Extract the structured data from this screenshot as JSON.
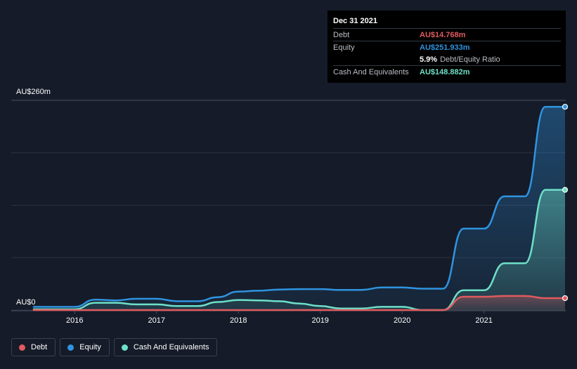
{
  "tooltip": {
    "date": "Dec 31 2021",
    "debt_label": "Debt",
    "debt_value": "AU$14.768m",
    "equity_label": "Equity",
    "equity_value": "AU$251.933m",
    "ratio_value": "5.9%",
    "ratio_label": "Debt/Equity Ratio",
    "cash_label": "Cash And Equivalents",
    "cash_value": "AU$148.882m"
  },
  "legend": {
    "debt_label": "Debt",
    "equity_label": "Equity",
    "cash_label": "Cash And Equivalents"
  },
  "colors": {
    "debt": "#e05a5f",
    "equity": "#2f94e0",
    "cash": "#6ee0c8",
    "background": "#151b28",
    "tooltip_bg": "#000000"
  },
  "chart_data": {
    "type": "area",
    "ylabel_top": "AU$260m",
    "ylabel_bottom": "AU$0",
    "ylim": [
      0,
      260
    ],
    "x_ticks": [
      "2016",
      "2017",
      "2018",
      "2019",
      "2020",
      "2021"
    ],
    "xlim": [
      2015.5,
      2021.99
    ],
    "grid": true,
    "series": [
      {
        "name": "Debt",
        "key": "debt",
        "points": [
          [
            2015.5,
            0
          ],
          [
            2016.0,
            0
          ],
          [
            2016.5,
            0
          ],
          [
            2017.0,
            0
          ],
          [
            2017.5,
            0
          ],
          [
            2018.0,
            0
          ],
          [
            2018.5,
            0
          ],
          [
            2019.0,
            0
          ],
          [
            2019.5,
            0
          ],
          [
            2020.0,
            0
          ],
          [
            2020.5,
            0
          ],
          [
            2020.75,
            16.5
          ],
          [
            2021.0,
            16.5
          ],
          [
            2021.25,
            17.5
          ],
          [
            2021.5,
            17.5
          ],
          [
            2021.75,
            14.8
          ],
          [
            2021.99,
            14.8
          ]
        ]
      },
      {
        "name": "Equity",
        "key": "equity",
        "points": [
          [
            2015.5,
            4
          ],
          [
            2016.0,
            4
          ],
          [
            2016.25,
            13
          ],
          [
            2016.5,
            12
          ],
          [
            2016.75,
            14
          ],
          [
            2017.0,
            14
          ],
          [
            2017.25,
            11
          ],
          [
            2017.5,
            11
          ],
          [
            2017.75,
            16
          ],
          [
            2018.0,
            23
          ],
          [
            2018.25,
            24
          ],
          [
            2018.5,
            25.5
          ],
          [
            2018.75,
            26
          ],
          [
            2019.0,
            26
          ],
          [
            2019.25,
            25
          ],
          [
            2019.5,
            25
          ],
          [
            2019.75,
            28
          ],
          [
            2020.0,
            28
          ],
          [
            2020.25,
            26.5
          ],
          [
            2020.5,
            26.5
          ],
          [
            2020.75,
            101
          ],
          [
            2021.0,
            101
          ],
          [
            2021.25,
            141
          ],
          [
            2021.5,
            141
          ],
          [
            2021.75,
            252
          ],
          [
            2021.99,
            252
          ]
        ]
      },
      {
        "name": "Cash And Equivalents",
        "key": "cash",
        "points": [
          [
            2015.5,
            1
          ],
          [
            2016.0,
            1
          ],
          [
            2016.25,
            9
          ],
          [
            2016.5,
            9
          ],
          [
            2016.75,
            7
          ],
          [
            2017.0,
            7
          ],
          [
            2017.25,
            5
          ],
          [
            2017.5,
            5
          ],
          [
            2017.75,
            10
          ],
          [
            2018.0,
            12.5
          ],
          [
            2018.25,
            12
          ],
          [
            2018.5,
            11
          ],
          [
            2018.75,
            8
          ],
          [
            2019.0,
            5
          ],
          [
            2019.25,
            2
          ],
          [
            2019.5,
            2
          ],
          [
            2019.75,
            4
          ],
          [
            2020.0,
            4
          ],
          [
            2020.25,
            0
          ],
          [
            2020.5,
            0
          ],
          [
            2020.75,
            24.5
          ],
          [
            2021.0,
            24.5
          ],
          [
            2021.25,
            58
          ],
          [
            2021.5,
            58
          ],
          [
            2021.75,
            149
          ],
          [
            2021.99,
            149
          ]
        ]
      }
    ]
  }
}
